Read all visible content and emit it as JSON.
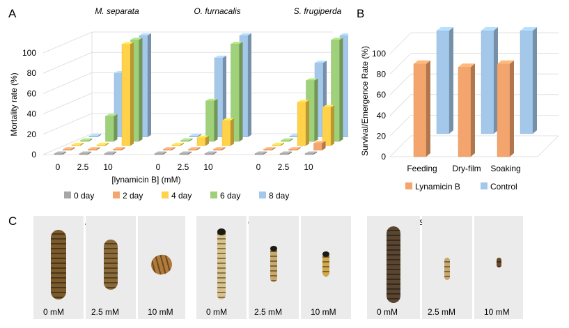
{
  "panels": {
    "a": "A",
    "b": "B",
    "c": "C"
  },
  "chart_data": [
    {
      "type": "bar",
      "chart_style": "3d-clustered",
      "groups": [
        "M. separata",
        "O. furnacalis",
        "S. frugiperda"
      ],
      "categories": [
        "0",
        "2.5",
        "10"
      ],
      "xlabel": "[lynamicin  B] (mM)",
      "ylabel": "Mortality rate (%)",
      "yticks": [
        "0",
        "20",
        "40",
        "60",
        "80",
        "100"
      ],
      "ylim": [
        0,
        100
      ],
      "legend_position": "bottom",
      "series": [
        {
          "name": "0 day",
          "color": "#a6a6a6",
          "values": [
            [
              0,
              0,
              0
            ],
            [
              0,
              0,
              0
            ],
            [
              0,
              0,
              0
            ]
          ]
        },
        {
          "name": "2 day",
          "color": "#f4a56d",
          "values": [
            [
              0,
              0,
              0
            ],
            [
              0,
              0,
              0
            ],
            [
              0,
              0,
              7
            ]
          ]
        },
        {
          "name": "4 day",
          "color": "#ffd24a",
          "values": [
            [
              0,
              0,
              100
            ],
            [
              0,
              8,
              25
            ],
            [
              0,
              43,
              38
            ]
          ]
        },
        {
          "name": "6 day",
          "color": "#9fd07a",
          "values": [
            [
              0,
              25,
              100
            ],
            [
              0,
              40,
              96
            ],
            [
              0,
              60,
              100
            ]
          ]
        },
        {
          "name": "8 day",
          "color": "#a4c8ea",
          "values": [
            [
              0,
              63,
              100
            ],
            [
              0,
              78,
              100
            ],
            [
              0,
              73,
              100
            ]
          ]
        }
      ]
    },
    {
      "type": "bar",
      "chart_style": "3d-clustered",
      "categories": [
        "Feeding",
        "Dry-film",
        "Soaking"
      ],
      "ylabel": "Survival/Emergence  Rate (%)",
      "yticks": [
        "0",
        "20",
        "40",
        "60",
        "80",
        "100"
      ],
      "ylim": [
        0,
        100
      ],
      "legend_position": "bottom",
      "series": [
        {
          "name": "Lynamicin B",
          "color": "#f4a56d",
          "values": [
            90,
            87,
            90
          ]
        },
        {
          "name": "Control",
          "color": "#a4c8ea",
          "values": [
            100,
            100,
            100
          ]
        }
      ]
    }
  ],
  "photos": {
    "groups": [
      {
        "title": "M.separata",
        "captions": [
          "0 mM",
          "2.5 mM",
          "10 mM"
        ]
      },
      {
        "title": "O.furnacalis",
        "captions": [
          "0 mM",
          "2.5 mM",
          "10 mM"
        ]
      },
      {
        "title": "S.frugiperda",
        "captions": [
          "0 mM",
          "2.5 mM",
          "10 mM"
        ]
      }
    ]
  }
}
